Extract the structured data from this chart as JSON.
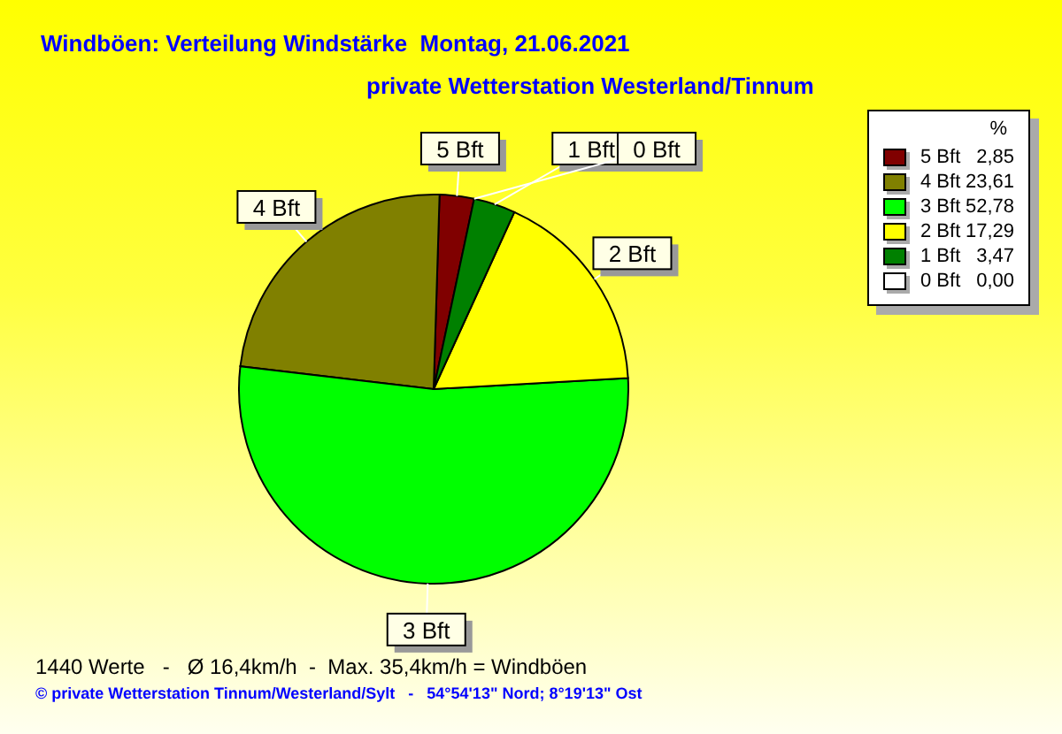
{
  "chart_data": {
    "type": "pie",
    "title": "Windböen: Verteilung Windstärke  Montag, 21.06.2021",
    "subtitle": "private Wetterstation Westerland/Tinnum",
    "legend_title": "%",
    "legend": "top right",
    "categories": [
      "5 Bft",
      "4 Bft",
      "3 Bft",
      "2 Bft",
      "1 Bft",
      "0 Bft"
    ],
    "values": [
      2.85,
      23.61,
      52.78,
      17.29,
      3.47,
      0.0
    ],
    "value_labels": [
      "2,85",
      "23,61",
      "52,78",
      "17,29",
      "3,47",
      "0,00"
    ],
    "colors": [
      "#800000",
      "#808000",
      "#00ff00",
      "#ffff00",
      "#008000",
      "#ffffff"
    ],
    "annotations": [
      "1440 Werte   -   Ø 16,4km/h  -  Max. 35,4km/h = Windböen",
      "© private Wetterstation Tinnum/Westerland/Sylt   -   54°54'13\" Nord; 8°19'13\" Ost"
    ]
  }
}
